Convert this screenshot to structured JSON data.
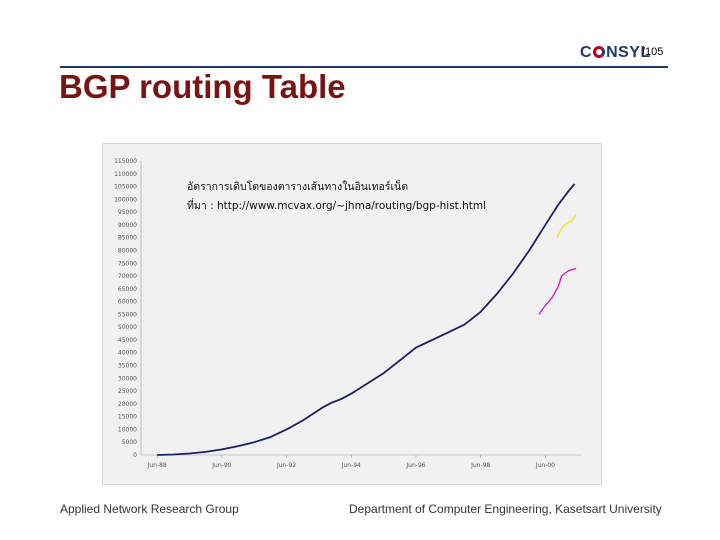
{
  "header": {
    "logo_text": "CONSYL",
    "page_number": "/105",
    "rule_color": "#1f3a6e"
  },
  "slide_title": "BGP routing Table",
  "footer": {
    "left": "Applied Network Research Group",
    "right": "Department of Computer Engineering, Kasetsart University"
  },
  "chart_data": {
    "type": "line",
    "title_lines": [
      "อัตราการเติบโตของตารางเส้นทางในอินเทอร์เน็ต",
      "ที่มา : http://www.mcvax.org/~jhma/routing/bgp-hist.html"
    ],
    "x_tick_labels": [
      "Jun-88",
      "Jun-90",
      "Jun-92",
      "Jun-94",
      "Jun-96",
      "Jun-98",
      "Jun-00"
    ],
    "xlim": [
      1988.0,
      2001.6
    ],
    "ylim": [
      0,
      115000
    ],
    "y_ticks": [
      0,
      5000,
      10000,
      15000,
      20000,
      25000,
      30000,
      35000,
      40000,
      45000,
      50000,
      55000,
      60000,
      65000,
      70000,
      75000,
      80000,
      85000,
      90000,
      95000,
      100000,
      105000,
      110000,
      115000
    ],
    "grid": false,
    "series": [
      {
        "color": "#1a1f66",
        "x": [
          1988.5,
          1989.0,
          1989.5,
          1990.0,
          1990.5,
          1991.0,
          1991.5,
          1992.0,
          1992.5,
          1993.0,
          1993.3,
          1993.6,
          1993.9,
          1994.2,
          1994.5,
          1995.0,
          1995.5,
          1996.0,
          1996.5,
          1997.0,
          1997.5,
          1998.0,
          1998.5,
          1999.0,
          1999.5,
          2000.0,
          2000.3,
          2000.6,
          2000.9,
          2001.2,
          2001.4
        ],
        "y": [
          0,
          200,
          600,
          1200,
          2200,
          3500,
          5000,
          7000,
          10000,
          13500,
          16000,
          18500,
          20500,
          22000,
          24000,
          28000,
          32000,
          37000,
          42000,
          45000,
          48000,
          51000,
          56000,
          63000,
          71000,
          80000,
          86000,
          92000,
          98000,
          103000,
          106000
        ]
      },
      {
        "color": "#f5e21a",
        "x": [
          2000.85,
          2001.0,
          2001.1,
          2001.2,
          2001.3,
          2001.4,
          2001.45
        ],
        "y": [
          85000,
          88500,
          90000,
          91000,
          91500,
          93000,
          94000
        ]
      },
      {
        "color": "#d71fb5",
        "x": [
          2000.3,
          2000.5,
          2000.7,
          2000.9,
          2001.0,
          2001.2,
          2001.45
        ],
        "y": [
          55000,
          58500,
          61500,
          66000,
          70000,
          72000,
          73000
        ]
      }
    ]
  }
}
